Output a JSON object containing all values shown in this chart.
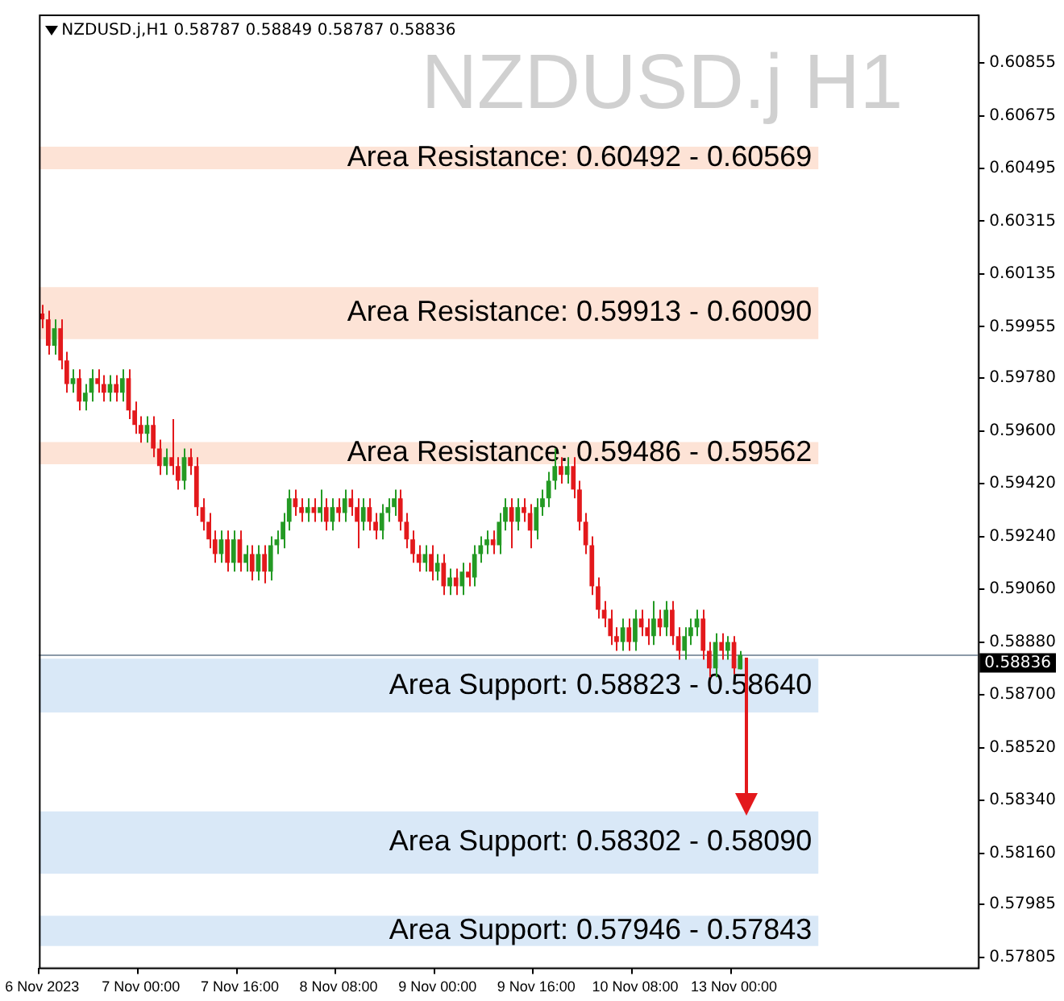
{
  "chart_data": {
    "type": "candlestick",
    "title": "NZDUSD.j H1",
    "subtitle": "NZDUSD.j,H1 0.58787 0.58849 0.58787 0.58836",
    "categories": [
      "6 Nov 2023",
      null,
      null,
      null,
      null,
      null,
      null,
      null,
      null,
      null,
      null,
      null,
      null,
      null,
      null,
      null,
      "7 Nov 00:00",
      null,
      null,
      null,
      null,
      null,
      null,
      null,
      null,
      null,
      null,
      null,
      null,
      null,
      null,
      null,
      "7 Nov 16:00",
      null,
      null,
      null,
      null,
      null,
      null,
      null,
      null,
      null,
      null,
      null,
      null,
      null,
      null,
      null,
      "8 Nov 08:00",
      null,
      null,
      null,
      null,
      null,
      null,
      null,
      null,
      null,
      null,
      null,
      null,
      null,
      null,
      null,
      "9 Nov 00:00",
      null,
      null,
      null,
      null,
      null,
      null,
      null,
      null,
      null,
      null,
      null,
      null,
      null,
      null,
      null,
      "9 Nov 16:00",
      null,
      null,
      null,
      null,
      null,
      null,
      null,
      null,
      null,
      null,
      null,
      null,
      null,
      null,
      null,
      "10 Nov 08:00",
      null,
      null,
      null,
      null,
      null,
      null,
      null,
      null,
      null,
      null,
      null,
      null,
      null,
      null,
      null,
      "13 Nov 00:00",
      null,
      null,
      null,
      null,
      null,
      null,
      null,
      null,
      null,
      null,
      null,
      null,
      null,
      null,
      null,
      null,
      null,
      null,
      null,
      null,
      null,
      null,
      null,
      null,
      null,
      null,
      null,
      null,
      null,
      null,
      null,
      null,
      null,
      null,
      null,
      null,
      null,
      null,
      null
    ],
    "ohlc": [
      [
        0.6,
        0.6003,
        0.5995,
        0.5998
      ],
      [
        0.5998,
        0.6001,
        0.5986,
        0.5989
      ],
      [
        0.5989,
        0.5998,
        0.5986,
        0.5995
      ],
      [
        0.5995,
        0.5998,
        0.5981,
        0.5984
      ],
      [
        0.5984,
        0.5987,
        0.5973,
        0.5976
      ],
      [
        0.5976,
        0.5981,
        0.5973,
        0.5978
      ],
      [
        0.5978,
        0.5981,
        0.5967,
        0.597
      ],
      [
        0.597,
        0.5976,
        0.5967,
        0.5973
      ],
      [
        0.5973,
        0.5981,
        0.597,
        0.5978
      ],
      [
        0.5978,
        0.5981,
        0.5973,
        0.5976
      ],
      [
        0.5976,
        0.5979,
        0.597,
        0.5973
      ],
      [
        0.5973,
        0.5979,
        0.597,
        0.5976
      ],
      [
        0.5976,
        0.5979,
        0.597,
        0.5973
      ],
      [
        0.5973,
        0.5981,
        0.597,
        0.5978
      ],
      [
        0.5978,
        0.5981,
        0.5964,
        0.5967
      ],
      [
        0.5967,
        0.597,
        0.5959,
        0.5962
      ],
      [
        0.5962,
        0.5965,
        0.5956,
        0.5959
      ],
      [
        0.5959,
        0.5965,
        0.5956,
        0.5962
      ],
      [
        0.5962,
        0.5965,
        0.5951,
        0.5954
      ],
      [
        0.5954,
        0.5957,
        0.5945,
        0.5948
      ],
      [
        0.5948,
        0.5954,
        0.5945,
        0.5951
      ],
      [
        0.5951,
        0.5964,
        0.5945,
        0.5948
      ],
      [
        0.5948,
        0.5951,
        0.594,
        0.5943
      ],
      [
        0.5943,
        0.5954,
        0.594,
        0.5951
      ],
      [
        0.5951,
        0.5954,
        0.5945,
        0.5948
      ],
      [
        0.5948,
        0.5951,
        0.5931,
        0.5934
      ],
      [
        0.5934,
        0.5937,
        0.5926,
        0.5929
      ],
      [
        0.5929,
        0.5932,
        0.592,
        0.5923
      ],
      [
        0.5923,
        0.5926,
        0.5915,
        0.5918
      ],
      [
        0.5918,
        0.5926,
        0.5915,
        0.5923
      ],
      [
        0.5923,
        0.5926,
        0.5912,
        0.5915
      ],
      [
        0.5915,
        0.5926,
        0.5912,
        0.5923
      ],
      [
        0.5923,
        0.5926,
        0.5912,
        0.5915
      ],
      [
        0.5915,
        0.5921,
        0.5912,
        0.5918
      ],
      [
        0.5918,
        0.5921,
        0.5909,
        0.5912
      ],
      [
        0.5912,
        0.5921,
        0.5909,
        0.5918
      ],
      [
        0.5918,
        0.5921,
        0.5908,
        0.5912
      ],
      [
        0.5912,
        0.5924,
        0.5909,
        0.5921
      ],
      [
        0.5921,
        0.5926,
        0.5918,
        0.5923
      ],
      [
        0.5923,
        0.5932,
        0.592,
        0.5929
      ],
      [
        0.5929,
        0.594,
        0.5926,
        0.5937
      ],
      [
        0.5937,
        0.594,
        0.5931,
        0.5934
      ],
      [
        0.5934,
        0.5937,
        0.5929,
        0.5932
      ],
      [
        0.5932,
        0.5937,
        0.5929,
        0.5934
      ],
      [
        0.5934,
        0.5937,
        0.5929,
        0.5932
      ],
      [
        0.5932,
        0.594,
        0.5929,
        0.5934
      ],
      [
        0.5934,
        0.5937,
        0.5926,
        0.5929
      ],
      [
        0.5929,
        0.5937,
        0.5926,
        0.5934
      ],
      [
        0.5934,
        0.5937,
        0.5929,
        0.5932
      ],
      [
        0.5932,
        0.594,
        0.5929,
        0.5937
      ],
      [
        0.5937,
        0.594,
        0.5931,
        0.5934
      ],
      [
        0.5934,
        0.5937,
        0.592,
        0.5929
      ],
      [
        0.5929,
        0.5937,
        0.5926,
        0.5934
      ],
      [
        0.5934,
        0.5937,
        0.5926,
        0.5929
      ],
      [
        0.5929,
        0.5932,
        0.5923,
        0.5926
      ],
      [
        0.5926,
        0.5935,
        0.5923,
        0.5932
      ],
      [
        0.5932,
        0.5937,
        0.5929,
        0.5934
      ],
      [
        0.5934,
        0.594,
        0.5931,
        0.5937
      ],
      [
        0.5937,
        0.594,
        0.5926,
        0.5929
      ],
      [
        0.5929,
        0.5932,
        0.592,
        0.5923
      ],
      [
        0.5923,
        0.5926,
        0.5915,
        0.5918
      ],
      [
        0.5918,
        0.5921,
        0.5912,
        0.5915
      ],
      [
        0.5915,
        0.5921,
        0.5912,
        0.5918
      ],
      [
        0.5918,
        0.5921,
        0.5909,
        0.5912
      ],
      [
        0.5912,
        0.5918,
        0.5909,
        0.5915
      ],
      [
        0.5915,
        0.5918,
        0.5904,
        0.5907
      ],
      [
        0.5907,
        0.5913,
        0.5904,
        0.591
      ],
      [
        0.591,
        0.5913,
        0.5904,
        0.5907
      ],
      [
        0.5907,
        0.5915,
        0.5904,
        0.5912
      ],
      [
        0.5912,
        0.5915,
        0.5907,
        0.591
      ],
      [
        0.591,
        0.5921,
        0.5907,
        0.5918
      ],
      [
        0.5918,
        0.5924,
        0.5915,
        0.5921
      ],
      [
        0.5921,
        0.5926,
        0.5918,
        0.5923
      ],
      [
        0.5923,
        0.5926,
        0.5918,
        0.5921
      ],
      [
        0.5921,
        0.5932,
        0.5918,
        0.5929
      ],
      [
        0.5929,
        0.5937,
        0.5926,
        0.5934
      ],
      [
        0.5934,
        0.5937,
        0.592,
        0.5929
      ],
      [
        0.5929,
        0.5937,
        0.5926,
        0.5934
      ],
      [
        0.5934,
        0.5937,
        0.5929,
        0.5932
      ],
      [
        0.5932,
        0.5935,
        0.592,
        0.5926
      ],
      [
        0.5926,
        0.5937,
        0.5923,
        0.5934
      ],
      [
        0.5934,
        0.594,
        0.5931,
        0.5937
      ],
      [
        0.5937,
        0.5946,
        0.5934,
        0.5943
      ],
      [
        0.5943,
        0.5954,
        0.594,
        0.5948
      ],
      [
        0.5948,
        0.5951,
        0.5942,
        0.5945
      ],
      [
        0.5945,
        0.5951,
        0.5942,
        0.5948
      ],
      [
        0.5948,
        0.5951,
        0.5937,
        0.594
      ],
      [
        0.594,
        0.5943,
        0.5926,
        0.5929
      ],
      [
        0.5929,
        0.5932,
        0.5918,
        0.5921
      ],
      [
        0.5921,
        0.5924,
        0.5904,
        0.5907
      ],
      [
        0.5907,
        0.591,
        0.5896,
        0.5899
      ],
      [
        0.5899,
        0.5902,
        0.5893,
        0.5896
      ],
      [
        0.5896,
        0.5899,
        0.5887,
        0.589
      ],
      [
        0.589,
        0.5893,
        0.5885,
        0.5888
      ],
      [
        0.5888,
        0.5896,
        0.5885,
        0.5893
      ],
      [
        0.5893,
        0.5896,
        0.5885,
        0.5888
      ],
      [
        0.5888,
        0.5899,
        0.5885,
        0.5896
      ],
      [
        0.5896,
        0.5899,
        0.589,
        0.5893
      ],
      [
        0.5893,
        0.5896,
        0.5887,
        0.589
      ],
      [
        0.589,
        0.5902,
        0.5887,
        0.5896
      ],
      [
        0.5896,
        0.5899,
        0.589,
        0.5893
      ],
      [
        0.5893,
        0.5902,
        0.589,
        0.5899
      ],
      [
        0.5899,
        0.5902,
        0.5887,
        0.589
      ],
      [
        0.589,
        0.5893,
        0.5882,
        0.5885
      ],
      [
        0.5885,
        0.5893,
        0.5882,
        0.589
      ],
      [
        0.589,
        0.5896,
        0.5887,
        0.5893
      ],
      [
        0.5893,
        0.5899,
        0.589,
        0.5896
      ],
      [
        0.5896,
        0.5899,
        0.5882,
        0.5885
      ],
      [
        0.5885,
        0.5888,
        0.5876,
        0.5879
      ],
      [
        0.5879,
        0.5891,
        0.5876,
        0.5888
      ],
      [
        0.5888,
        0.5891,
        0.5882,
        0.5885
      ],
      [
        0.5885,
        0.589,
        0.5882,
        0.5888
      ],
      [
        0.5888,
        0.589,
        0.5877,
        0.5879
      ],
      [
        0.58787,
        0.58849,
        0.58787,
        0.58836
      ],
      null,
      null,
      null,
      null,
      null,
      null,
      null,
      null,
      null,
      null,
      null,
      null,
      null,
      null,
      null,
      null,
      null,
      null,
      null,
      null,
      null,
      null,
      null,
      null,
      null,
      null,
      null,
      null,
      null,
      null,
      null,
      null,
      null,
      null,
      null,
      null,
      null,
      null
    ],
    "colors": [
      "#e3191c",
      "#e3191c",
      "#249a24",
      "#e3191c",
      "#e3191c",
      "#249a24",
      "#e3191c",
      "#249a24",
      "#249a24",
      "#e3191c",
      "#e3191c",
      "#249a24",
      "#e3191c",
      "#249a24",
      "#e3191c",
      "#e3191c",
      "#e3191c",
      "#249a24",
      "#e3191c",
      "#e3191c",
      "#249a24",
      "#e3191c",
      "#e3191c",
      "#249a24",
      "#e3191c",
      "#e3191c",
      "#e3191c",
      "#e3191c",
      "#e3191c",
      "#249a24",
      "#e3191c",
      "#249a24",
      "#e3191c",
      "#249a24",
      "#e3191c",
      "#249a24",
      "#e3191c",
      "#249a24",
      "#249a24",
      "#249a24",
      "#249a24",
      "#e3191c",
      "#e3191c",
      "#249a24",
      "#e3191c",
      "#249a24",
      "#e3191c",
      "#249a24",
      "#e3191c",
      "#249a24",
      "#e3191c",
      "#e3191c",
      "#249a24",
      "#e3191c",
      "#e3191c",
      "#249a24",
      "#249a24",
      "#249a24",
      "#e3191c",
      "#e3191c",
      "#e3191c",
      "#e3191c",
      "#249a24",
      "#e3191c",
      "#249a24",
      "#e3191c",
      "#249a24",
      "#e3191c",
      "#249a24",
      "#e3191c",
      "#249a24",
      "#249a24",
      "#249a24",
      "#e3191c",
      "#249a24",
      "#249a24",
      "#e3191c",
      "#249a24",
      "#e3191c",
      "#e3191c",
      "#249a24",
      "#249a24",
      "#249a24",
      "#249a24",
      "#e3191c",
      "#249a24",
      "#e3191c",
      "#e3191c",
      "#e3191c",
      "#e3191c",
      "#e3191c",
      "#e3191c",
      "#e3191c",
      "#e3191c",
      "#249a24",
      "#e3191c",
      "#249a24",
      "#e3191c",
      "#e3191c",
      "#249a24",
      "#e3191c",
      "#249a24",
      "#e3191c",
      "#e3191c",
      "#249a24",
      "#249a24",
      "#249a24",
      "#e3191c",
      "#e3191c",
      "#249a24",
      "#e3191c",
      "#249a24",
      "#e3191c",
      "#249a24",
      null,
      null,
      null,
      null,
      null,
      null,
      null,
      null,
      null,
      null,
      null,
      null,
      null,
      null,
      null,
      null,
      null,
      null,
      null,
      null,
      null,
      null,
      null,
      null,
      null,
      null,
      null,
      null,
      null,
      null,
      null,
      null,
      null,
      null,
      null,
      null,
      null,
      null
    ],
    "ylim": [
      0.5777,
      0.6102
    ],
    "yticks": [
      0.60855,
      0.60675,
      0.60495,
      0.60315,
      0.60135,
      0.59955,
      {
        "value": 0.5978,
        "label": "0.59780"
      },
      {
        "value": 0.596,
        "label": "0.59600"
      },
      {
        "value": 0.5942,
        "label": "0.59420"
      },
      {
        "value": 0.5924,
        "label": "0.59240"
      },
      {
        "value": 0.5906,
        "label": "0.59060"
      },
      {
        "value": 0.5888,
        "label": "0.58880"
      },
      {
        "value": 0.587,
        "label": "0.58700"
      },
      {
        "value": 0.5852,
        "label": "0.58520"
      },
      {
        "value": 0.5834,
        "label": "0.58340"
      },
      {
        "value": 0.5816,
        "label": "0.58160"
      },
      0.57985,
      0.57805
    ],
    "bands": [
      {
        "axis": "y",
        "from": 0.60492,
        "to": 0.60569,
        "label": "Area Resistance: 0.60492 - 0.60569",
        "color": "#fde3d6"
      },
      {
        "axis": "y",
        "from": 0.59913,
        "to": 0.6009,
        "label": "Area Resistance: 0.59913 - 0.60090",
        "color": "#fde3d6"
      },
      {
        "axis": "y",
        "from": 0.59486,
        "to": 0.59562,
        "label": "Area Resistance: 0.59486 - 0.59562",
        "color": "#fde3d6"
      },
      {
        "axis": "y",
        "from": 0.58823,
        "to": 0.5864,
        "label": "Area Support: 0.58823 - 0.58640",
        "color": "#d9e8f7"
      },
      {
        "axis": "y",
        "from": 0.58302,
        "to": 0.5809,
        "label": "Area Support: 0.58302 - 0.58090",
        "color": "#d9e8f7"
      },
      {
        "axis": "y",
        "from": 0.57946,
        "to": 0.57843,
        "label": "Area Support: 0.57946 - 0.57843",
        "color": "#d9e8f7"
      }
    ],
    "ref_lines": [
      {
        "axis": "y",
        "value": 0.58836,
        "label": "0.58836",
        "color": "#8c9aa8"
      }
    ]
  }
}
